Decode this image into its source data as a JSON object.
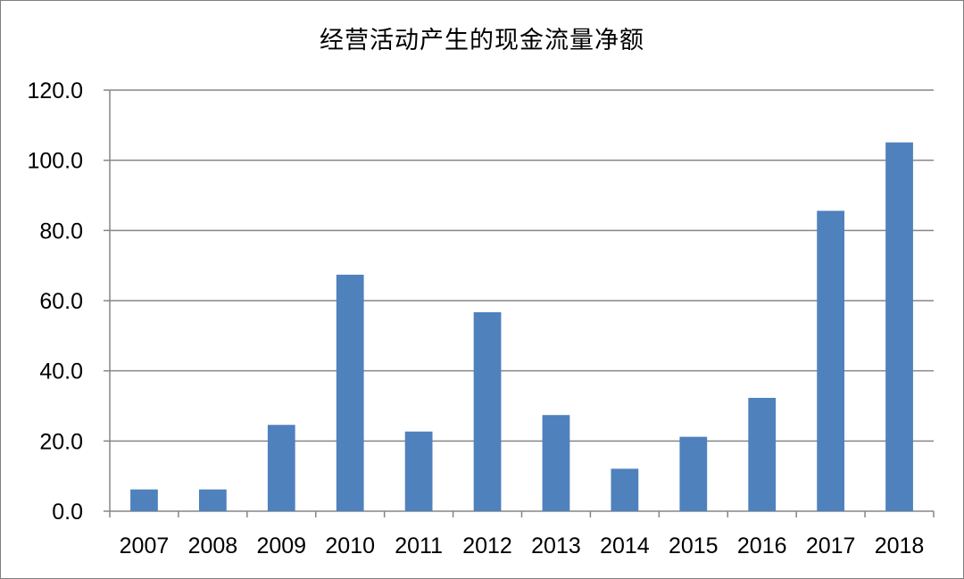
{
  "chart_data": {
    "type": "bar",
    "title": "经营活动产生的现金流量净额",
    "xlabel": "",
    "ylabel": "",
    "categories": [
      "2007",
      "2008",
      "2009",
      "2010",
      "2011",
      "2012",
      "2013",
      "2014",
      "2015",
      "2016",
      "2017",
      "2018"
    ],
    "values": [
      6.2,
      6.2,
      24.6,
      67.4,
      22.7,
      56.7,
      27.4,
      12.1,
      21.2,
      32.3,
      85.6,
      105.1
    ],
    "ylim": [
      0,
      120
    ],
    "yticks": [
      "0.0",
      "20.0",
      "40.0",
      "60.0",
      "80.0",
      "100.0",
      "120.0"
    ],
    "grid": true,
    "legend": "none",
    "bar_color": "#4f81bd",
    "grid_color": "#868686"
  }
}
